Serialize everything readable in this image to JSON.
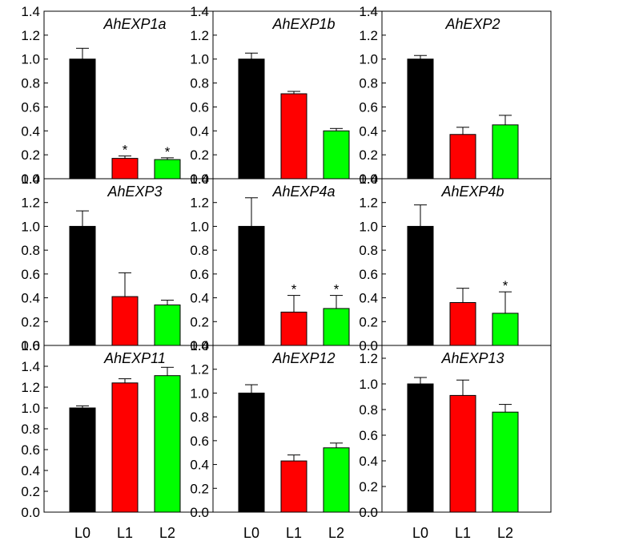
{
  "chart_data": {
    "type": "bar",
    "layout": "3x3 grid of panels",
    "categories": [
      "L0",
      "L1",
      "L2"
    ],
    "colors": {
      "L0": "#000000",
      "L1": "#ff0000",
      "L2": "#00ff00"
    },
    "panels": [
      {
        "title": "AhEXP1a",
        "values": [
          1.0,
          0.17,
          0.16
        ],
        "errors": [
          0.09,
          0.02,
          0.015
        ],
        "significant": [
          false,
          true,
          true
        ],
        "ylim": [
          0,
          1.4
        ],
        "yticks": [
          "0.0",
          "0.2",
          "0.4",
          "0.6",
          "0.8",
          "1.0",
          "1.2",
          "1.4"
        ]
      },
      {
        "title": "AhEXP1b",
        "values": [
          1.0,
          0.71,
          0.4
        ],
        "errors": [
          0.05,
          0.02,
          0.02
        ],
        "significant": [
          false,
          false,
          false
        ],
        "ylim": [
          0,
          1.4
        ],
        "yticks": [
          "0.0",
          "0.2",
          "0.4",
          "0.6",
          "0.8",
          "1.0",
          "1.2",
          "1.4"
        ]
      },
      {
        "title": "AhEXP2",
        "values": [
          1.0,
          0.37,
          0.45
        ],
        "errors": [
          0.03,
          0.06,
          0.08
        ],
        "significant": [
          false,
          false,
          false
        ],
        "ylim": [
          0,
          1.4
        ],
        "yticks": [
          "0.0",
          "0.2",
          "0.4",
          "0.6",
          "0.8",
          "1.0",
          "1.2",
          "1.4"
        ]
      },
      {
        "title": "AhEXP3",
        "values": [
          1.0,
          0.41,
          0.34
        ],
        "errors": [
          0.13,
          0.2,
          0.04
        ],
        "significant": [
          false,
          false,
          false
        ],
        "ylim": [
          0,
          1.4
        ],
        "yticks": [
          "0.0",
          "0.2",
          "0.4",
          "0.6",
          "0.8",
          "1.0",
          "1.2",
          "1.4"
        ]
      },
      {
        "title": "AhEXP4a",
        "values": [
          1.0,
          0.28,
          0.31
        ],
        "errors": [
          0.24,
          0.14,
          0.11
        ],
        "significant": [
          false,
          true,
          true
        ],
        "ylim": [
          0,
          1.4
        ],
        "yticks": [
          "0.0",
          "0.2",
          "0.4",
          "0.6",
          "0.8",
          "1.0",
          "1.2",
          "1.4"
        ]
      },
      {
        "title": "AhEXP4b",
        "values": [
          1.0,
          0.36,
          0.27
        ],
        "errors": [
          0.18,
          0.12,
          0.18
        ],
        "significant": [
          false,
          false,
          true
        ],
        "ylim": [
          0,
          1.4
        ],
        "yticks": [
          "0.0",
          "0.2",
          "0.4",
          "0.6",
          "0.8",
          "1.0",
          "1.2",
          "1.4"
        ]
      },
      {
        "title": "AhEXP11",
        "values": [
          1.0,
          1.24,
          1.31
        ],
        "errors": [
          0.02,
          0.04,
          0.08
        ],
        "significant": [
          false,
          false,
          false
        ],
        "ylim": [
          0,
          1.6
        ],
        "yticks": [
          "0.0",
          "0.2",
          "0.4",
          "0.6",
          "0.8",
          "1.0",
          "1.2",
          "1.4",
          "1.6"
        ]
      },
      {
        "title": "AhEXP12",
        "values": [
          1.0,
          0.43,
          0.54
        ],
        "errors": [
          0.07,
          0.05,
          0.04
        ],
        "significant": [
          false,
          false,
          false
        ],
        "ylim": [
          0,
          1.4
        ],
        "yticks": [
          "0.0",
          "0.2",
          "0.4",
          "0.6",
          "0.8",
          "1.0",
          "1.2",
          "1.4"
        ]
      },
      {
        "title": "AhEXP13",
        "values": [
          1.0,
          0.91,
          0.78
        ],
        "errors": [
          0.05,
          0.12,
          0.06
        ],
        "significant": [
          false,
          false,
          false
        ],
        "ylim": [
          0,
          1.3
        ],
        "yticks": [
          "0.0",
          "0.2",
          "0.4",
          "0.6",
          "0.8",
          "1.0",
          "1.2"
        ]
      }
    ],
    "significance_marker": "*",
    "xlabel": "",
    "ylabel": "",
    "grid": false
  }
}
